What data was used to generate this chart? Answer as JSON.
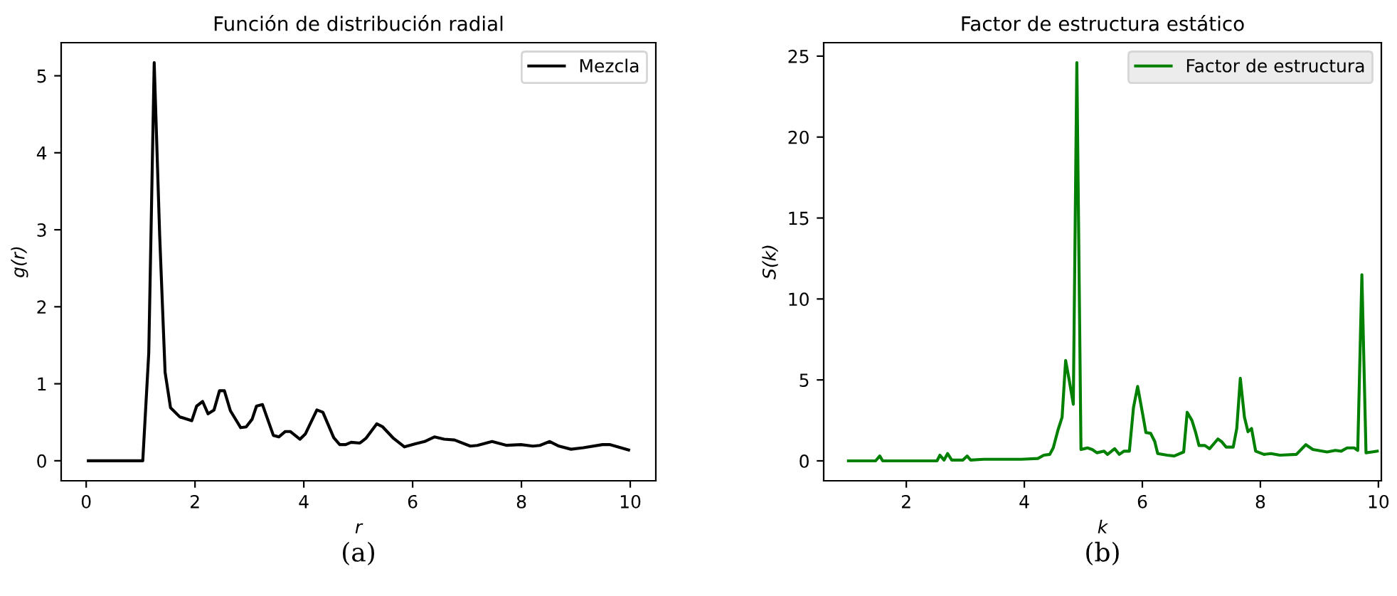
{
  "chart_data": [
    {
      "type": "line",
      "title": "Función de distribución radial",
      "xlabel": "r",
      "ylabel": "g(r)",
      "x": [
        0.04,
        1.04,
        1.15,
        1.25,
        1.35,
        1.45,
        1.55,
        1.72,
        1.94,
        2.03,
        2.14,
        2.24,
        2.35,
        2.45,
        2.54,
        2.65,
        2.84,
        2.94,
        3.05,
        3.13,
        3.24,
        3.44,
        3.54,
        3.66,
        3.75,
        3.93,
        4.03,
        4.24,
        4.35,
        4.55,
        4.66,
        4.77,
        4.87,
        5.03,
        5.14,
        5.34,
        5.45,
        5.65,
        5.85,
        6.05,
        6.22,
        6.4,
        6.58,
        6.77,
        7.06,
        7.19,
        7.46,
        7.73,
        7.99,
        8.21,
        8.34,
        8.52,
        8.69,
        8.91,
        9.14,
        9.49,
        9.62,
        9.97
      ],
      "series": [
        {
          "name": "Mezcla",
          "color": "#000000",
          "values": [
            0,
            0,
            1.4,
            5.17,
            2.94,
            1.15,
            0.69,
            0.57,
            0.52,
            0.71,
            0.77,
            0.61,
            0.66,
            0.91,
            0.91,
            0.65,
            0.43,
            0.44,
            0.54,
            0.71,
            0.73,
            0.33,
            0.31,
            0.38,
            0.38,
            0.28,
            0.35,
            0.66,
            0.63,
            0.3,
            0.21,
            0.21,
            0.24,
            0.23,
            0.29,
            0.48,
            0.44,
            0.29,
            0.18,
            0.22,
            0.25,
            0.31,
            0.28,
            0.27,
            0.19,
            0.2,
            0.25,
            0.2,
            0.21,
            0.19,
            0.2,
            0.25,
            0.19,
            0.15,
            0.17,
            0.21,
            0.21,
            0.14
          ]
        }
      ],
      "xlim": [
        -0.46,
        10.47
      ],
      "ylim": [
        -0.26,
        5.43
      ],
      "xticks": [
        0,
        2,
        4,
        6,
        8,
        10
      ],
      "yticks": [
        0,
        1,
        2,
        3,
        4,
        5
      ],
      "legend": "top right",
      "grid": false,
      "annotations": [
        "(a)"
      ]
    },
    {
      "type": "line",
      "title": "Factor de estructura estático",
      "xlabel": "k",
      "ylabel": "S(k)",
      "x": [
        1.02,
        1.48,
        1.55,
        1.6,
        2.52,
        2.57,
        2.64,
        2.7,
        2.77,
        2.96,
        3.03,
        3.09,
        3.31,
        3.63,
        3.95,
        4.23,
        4.33,
        4.43,
        4.49,
        4.57,
        4.64,
        4.7,
        4.76,
        4.83,
        4.89,
        4.96,
        5.07,
        5.15,
        5.23,
        5.35,
        5.41,
        5.53,
        5.61,
        5.69,
        5.78,
        5.85,
        5.92,
        6.01,
        6.06,
        6.14,
        6.21,
        6.26,
        6.42,
        6.54,
        6.7,
        6.76,
        6.84,
        6.9,
        6.96,
        7.06,
        7.14,
        7.28,
        7.34,
        7.42,
        7.54,
        7.6,
        7.66,
        7.73,
        7.79,
        7.85,
        7.92,
        8.06,
        8.18,
        8.33,
        8.61,
        8.77,
        8.89,
        9.13,
        9.27,
        9.37,
        9.47,
        9.59,
        9.65,
        9.72,
        9.79,
        9.89,
        9.98
      ],
      "series": [
        {
          "name": "Factor de estructura",
          "color": "#008000",
          "values": [
            0,
            0,
            0.3,
            0,
            0,
            0.35,
            0.05,
            0.45,
            0.05,
            0.05,
            0.3,
            0.05,
            0.1,
            0.1,
            0.1,
            0.15,
            0.35,
            0.4,
            0.8,
            1.9,
            2.7,
            6.2,
            5.0,
            3.5,
            24.6,
            0.7,
            0.8,
            0.7,
            0.5,
            0.6,
            0.4,
            0.75,
            0.4,
            0.6,
            0.6,
            3.3,
            4.6,
            2.8,
            1.75,
            1.7,
            1.2,
            0.45,
            0.35,
            0.3,
            0.55,
            3.0,
            2.5,
            1.8,
            0.95,
            0.95,
            0.75,
            1.35,
            1.2,
            0.85,
            0.85,
            2.0,
            5.1,
            2.7,
            1.8,
            2.0,
            0.6,
            0.4,
            0.45,
            0.35,
            0.4,
            1.0,
            0.7,
            0.55,
            0.65,
            0.6,
            0.8,
            0.8,
            0.65,
            11.5,
            0.5,
            0.55,
            0.6
          ]
        }
      ],
      "xlim": [
        0.6,
        10.05
      ],
      "ylim": [
        -1.23,
        25.83
      ],
      "xticks": [
        2,
        4,
        6,
        8,
        10
      ],
      "yticks": [
        0,
        5,
        10,
        15,
        20,
        25
      ],
      "legend": "top right",
      "grid": false,
      "annotations": [
        "(b)"
      ]
    }
  ]
}
